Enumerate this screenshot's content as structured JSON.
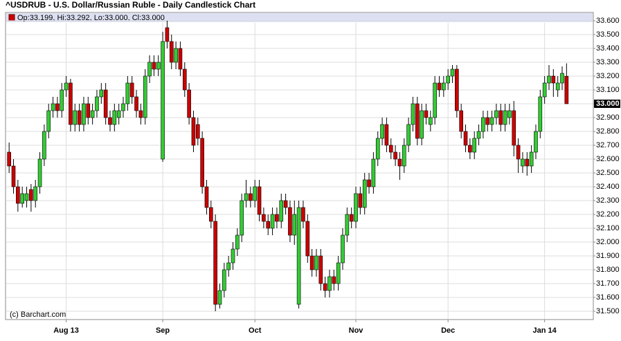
{
  "chart_data": {
    "type": "candlestick",
    "title": "^USDRUB - U.S. Dollar/Russian Ruble - Daily Candlestick Chart",
    "legend_text": "Op:33.199, Hi:33.292, Lo:33.000, Cl:33.000",
    "last_price_label": "33.000",
    "credit": "(c) Barchart.com",
    "up_color": "#33cc33",
    "down_color": "#cc0000",
    "grid": true,
    "categories": [
      null,
      null,
      null,
      null,
      null,
      null,
      null,
      null,
      null,
      null,
      null,
      null,
      null,
      "Aug 13",
      null,
      null,
      null,
      null,
      null,
      null,
      null,
      null,
      null,
      null,
      null,
      null,
      null,
      null,
      null,
      null,
      null,
      null,
      null,
      null,
      null,
      "Sep",
      null,
      null,
      null,
      null,
      null,
      null,
      null,
      null,
      null,
      null,
      null,
      null,
      null,
      null,
      null,
      null,
      null,
      null,
      null,
      null,
      "Oct",
      null,
      null,
      null,
      null,
      null,
      null,
      null,
      null,
      null,
      null,
      null,
      null,
      null,
      null,
      null,
      null,
      null,
      null,
      null,
      null,
      null,
      null,
      "Nov",
      null,
      null,
      null,
      null,
      null,
      null,
      null,
      null,
      null,
      null,
      null,
      null,
      null,
      null,
      null,
      null,
      null,
      null,
      null,
      null,
      "Dec",
      null,
      null,
      null,
      null,
      null,
      null,
      null,
      null,
      null,
      null,
      null,
      null,
      null,
      null,
      null,
      null,
      null,
      null,
      null,
      null,
      null,
      "Jan 14",
      null,
      null,
      null,
      null,
      null
    ],
    "open": [
      32.65,
      32.55,
      32.4,
      32.28,
      32.3,
      32.38,
      32.3,
      32.4,
      32.6,
      32.8,
      32.95,
      33.0,
      32.95,
      33.1,
      33.15,
      32.85,
      32.95,
      32.85,
      33.0,
      32.9,
      32.95,
      33.05,
      33.1,
      32.9,
      32.85,
      32.9,
      32.95,
      33.0,
      33.15,
      33.05,
      32.95,
      32.9,
      33.2,
      33.3,
      33.25,
      32.6,
      33.55,
      33.45,
      33.3,
      33.4,
      33.25,
      33.1,
      32.9,
      32.85,
      32.75,
      32.4,
      32.25,
      32.15,
      31.55,
      31.65,
      31.8,
      31.85,
      31.95,
      32.05,
      32.3,
      32.35,
      32.3,
      32.4,
      32.2,
      32.15,
      32.1,
      32.2,
      32.15,
      32.3,
      32.25,
      32.05,
      31.55,
      32.25,
      32.15,
      31.9,
      31.8,
      31.9,
      31.7,
      31.65,
      31.75,
      31.7,
      31.85,
      32.05,
      32.2,
      32.15,
      32.35,
      32.25,
      32.45,
      32.4,
      32.6,
      32.75,
      32.85,
      32.7,
      32.65,
      32.6,
      32.55,
      32.7,
      32.85,
      33.0,
      32.75,
      32.95,
      32.85,
      32.9,
      33.15,
      33.1,
      33.15,
      33.2,
      33.25,
      32.95,
      32.8,
      32.7,
      32.65,
      32.75,
      32.8,
      32.9,
      32.85,
      32.9,
      32.95,
      32.85,
      32.9,
      32.95,
      32.7,
      32.55,
      32.6,
      32.55,
      32.65,
      32.8,
      33.05,
      33.15,
      33.2,
      33.1,
      33.15,
      33.199
    ],
    "high": [
      32.72,
      32.6,
      32.45,
      32.4,
      32.4,
      32.42,
      32.45,
      32.65,
      32.85,
      33.0,
      33.05,
      33.05,
      33.15,
      33.2,
      33.18,
      33.0,
      33.0,
      33.05,
      33.05,
      33.0,
      33.1,
      33.15,
      33.15,
      32.95,
      33.0,
      33.0,
      33.05,
      33.2,
      33.2,
      33.1,
      33.0,
      33.25,
      33.35,
      33.35,
      33.35,
      33.52,
      33.6,
      33.5,
      33.45,
      33.45,
      33.3,
      33.15,
      32.95,
      32.9,
      32.8,
      32.45,
      32.3,
      32.2,
      31.7,
      31.85,
      31.9,
      32.0,
      32.1,
      32.35,
      32.45,
      32.4,
      32.45,
      32.45,
      32.25,
      32.2,
      32.25,
      32.25,
      32.35,
      32.35,
      32.3,
      32.3,
      32.3,
      32.3,
      32.2,
      31.95,
      31.95,
      31.95,
      31.75,
      31.8,
      31.8,
      31.9,
      32.1,
      32.25,
      32.25,
      32.4,
      32.4,
      32.5,
      32.5,
      32.65,
      32.8,
      32.9,
      32.9,
      32.75,
      32.7,
      32.65,
      32.75,
      32.9,
      33.05,
      33.05,
      33.0,
      33.0,
      32.95,
      33.2,
      33.2,
      33.2,
      33.25,
      33.28,
      33.28,
      33.0,
      32.85,
      32.75,
      32.8,
      32.85,
      32.95,
      32.95,
      32.95,
      33.0,
      33.0,
      33.0,
      33.0,
      33.02,
      32.75,
      32.65,
      32.65,
      32.7,
      32.85,
      33.1,
      33.2,
      33.28,
      33.25,
      33.2,
      33.27,
      33.292
    ],
    "low": [
      32.5,
      32.35,
      32.22,
      32.25,
      32.25,
      32.22,
      32.25,
      32.35,
      32.55,
      32.75,
      32.9,
      32.9,
      32.9,
      33.05,
      32.8,
      32.8,
      32.8,
      32.8,
      32.85,
      32.85,
      32.9,
      33.0,
      32.85,
      32.8,
      32.8,
      32.85,
      32.9,
      32.95,
      33.0,
      32.9,
      32.85,
      32.85,
      33.15,
      33.2,
      33.2,
      32.58,
      33.4,
      33.25,
      33.25,
      33.2,
      33.05,
      32.85,
      32.65,
      32.7,
      32.35,
      32.2,
      32.1,
      31.5,
      31.52,
      31.6,
      31.75,
      31.8,
      31.9,
      32.0,
      32.25,
      32.25,
      32.25,
      32.15,
      32.1,
      32.05,
      32.05,
      32.1,
      32.1,
      32.2,
      32.0,
      31.98,
      31.52,
      32.1,
      31.85,
      31.75,
      31.75,
      31.65,
      31.6,
      31.6,
      31.65,
      31.65,
      31.8,
      32.0,
      32.1,
      32.1,
      32.2,
      32.2,
      32.35,
      32.35,
      32.55,
      32.7,
      32.65,
      32.6,
      32.55,
      32.45,
      32.5,
      32.65,
      32.8,
      32.7,
      32.7,
      32.85,
      32.8,
      32.85,
      33.05,
      33.05,
      33.1,
      33.15,
      32.9,
      32.75,
      32.65,
      32.6,
      32.6,
      32.7,
      32.75,
      32.8,
      32.8,
      32.85,
      32.8,
      32.8,
      32.85,
      32.62,
      32.5,
      32.5,
      32.48,
      32.5,
      32.6,
      32.75,
      33.0,
      33.1,
      33.05,
      33.05,
      33.1,
      33.0
    ],
    "close": [
      32.55,
      32.4,
      32.28,
      32.35,
      32.35,
      32.3,
      32.4,
      32.6,
      32.8,
      32.95,
      33.0,
      32.95,
      33.1,
      33.15,
      32.85,
      32.95,
      32.85,
      33.0,
      32.9,
      32.95,
      33.05,
      33.1,
      32.9,
      32.85,
      32.95,
      32.95,
      33.0,
      33.15,
      33.05,
      32.95,
      32.9,
      33.2,
      33.3,
      33.25,
      33.3,
      33.45,
      33.45,
      33.3,
      33.4,
      33.25,
      33.1,
      32.9,
      32.7,
      32.75,
      32.4,
      32.25,
      32.15,
      31.55,
      31.65,
      31.8,
      31.85,
      31.95,
      32.05,
      32.3,
      32.35,
      32.3,
      32.4,
      32.2,
      32.15,
      32.1,
      32.2,
      32.15,
      32.3,
      32.25,
      32.05,
      32.2,
      32.25,
      32.15,
      31.9,
      31.8,
      31.9,
      31.7,
      31.65,
      31.75,
      31.7,
      31.85,
      32.05,
      32.2,
      32.15,
      32.35,
      32.25,
      32.45,
      32.4,
      32.6,
      32.75,
      32.85,
      32.7,
      32.65,
      32.6,
      32.55,
      32.7,
      32.85,
      33.0,
      32.75,
      32.95,
      32.9,
      32.9,
      33.15,
      33.1,
      33.15,
      33.2,
      33.25,
      32.95,
      32.8,
      32.7,
      32.65,
      32.75,
      32.8,
      32.9,
      32.85,
      32.9,
      32.95,
      32.85,
      32.95,
      32.95,
      32.7,
      32.6,
      32.6,
      32.55,
      32.65,
      32.8,
      33.05,
      33.15,
      33.2,
      33.15,
      33.15,
      33.22,
      33.0
    ],
    "ylim": [
      31.45,
      33.65
    ],
    "yticks": [
      {
        "value": 31.5,
        "label": "31.500"
      },
      {
        "value": 31.6,
        "label": "31.600"
      },
      {
        "value": 31.7,
        "label": "31.700"
      },
      {
        "value": 31.8,
        "label": "31.800"
      },
      {
        "value": 31.9,
        "label": "31.900"
      },
      {
        "value": 32.0,
        "label": "32.000"
      },
      {
        "value": 32.1,
        "label": "32.100"
      },
      {
        "value": 32.2,
        "label": "32.200"
      },
      {
        "value": 32.3,
        "label": "32.300"
      },
      {
        "value": 32.4,
        "label": "32.400"
      },
      {
        "value": 32.5,
        "label": "32.500"
      },
      {
        "value": 32.6,
        "label": "32.600"
      },
      {
        "value": 32.7,
        "label": "32.700"
      },
      {
        "value": 32.8,
        "label": "32.800"
      },
      {
        "value": 32.9,
        "label": "32.900"
      },
      {
        "value": 33.0,
        "label": "33.000"
      },
      {
        "value": 33.1,
        "label": "33.100"
      },
      {
        "value": 33.2,
        "label": "33.200"
      },
      {
        "value": 33.3,
        "label": "33.300"
      },
      {
        "value": 33.4,
        "label": "33.400"
      },
      {
        "value": 33.5,
        "label": "33.500"
      },
      {
        "value": 33.6,
        "label": "33.600"
      }
    ]
  }
}
